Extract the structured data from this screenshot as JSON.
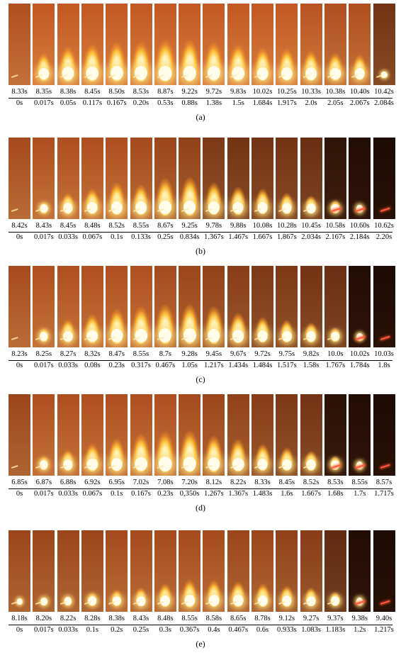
{
  "panels": [
    {
      "caption": "(a)",
      "times_abs": [
        "8.33s",
        "8.35s",
        "8.38s",
        "8.45s",
        "8.50s",
        "8.53s",
        "8.87s",
        "9.22s",
        "9.72s",
        "9.83s",
        "10.02s",
        "10.25s",
        "10.33s",
        "10.38s",
        "10.40s",
        "10.42s"
      ],
      "times_rel": [
        "0s",
        "0.017s",
        "0.05s",
        "0.117s",
        "0.167s",
        "0.20s",
        "0.53s",
        "0.88s",
        "1.38s",
        "1.5s",
        "1.684s",
        "1.917s",
        "2.0s",
        "2.05s",
        "2.067s",
        "2.084s"
      ],
      "flame_level": [
        0.0,
        0.6,
        0.75,
        0.8,
        0.85,
        0.85,
        0.9,
        0.9,
        0.85,
        0.8,
        0.72,
        0.7,
        0.65,
        0.6,
        0.55,
        0.05
      ],
      "darkness": [
        0.2,
        0.1,
        0.1,
        0.1,
        0.1,
        0.1,
        0.1,
        0.1,
        0.1,
        0.1,
        0.1,
        0.1,
        0.15,
        0.2,
        0.2,
        0.5
      ]
    },
    {
      "caption": "(b)",
      "times_abs": [
        "8.42s",
        "8.43s",
        "8.45s",
        "8.48s",
        "8.52s",
        "8.55s",
        "8.67s",
        "9.25s",
        "9.78s",
        "9.88s",
        "10.08s",
        "10.28s",
        "10.45s",
        "10.58s",
        "10.60s",
        "10.62s"
      ],
      "times_rel": [
        "0s",
        "0.017s",
        "0.033s",
        "0.067s",
        "0.1s",
        "0.133s",
        "0.25s",
        "0.834s",
        "1.367s",
        "1.467s",
        "1.667s",
        "1.867s",
        "2.034s",
        "2.167s",
        "2.184s",
        "2.20s"
      ],
      "flame_level": [
        0.0,
        0.25,
        0.45,
        0.55,
        0.7,
        0.65,
        0.8,
        0.82,
        0.7,
        0.6,
        0.55,
        0.45,
        0.38,
        0.28,
        0.15,
        0.0
      ],
      "darkness": [
        0.25,
        0.2,
        0.2,
        0.2,
        0.2,
        0.25,
        0.3,
        0.35,
        0.45,
        0.5,
        0.5,
        0.5,
        0.55,
        0.85,
        0.92,
        0.95
      ]
    },
    {
      "caption": "(c)",
      "times_abs": [
        "8.23s",
        "8.25s",
        "8.27s",
        "8.32s",
        "8.47s",
        "8.55s",
        "8.7s",
        "9.28s",
        "9.45s",
        "9.67s",
        "9.72s",
        "9.75s",
        "9.82s",
        "10.0s",
        "10.02s",
        "10.03s"
      ],
      "times_rel": [
        "0s",
        "0.017s",
        "0.033s",
        "0.08s",
        "0.23s",
        "0.317s",
        "0.467s",
        "1.05s",
        "1.217s",
        "1.434s",
        "1.484s",
        "1.517s",
        "1.58s",
        "1.767s",
        "1.784s",
        "1.8s"
      ],
      "flame_level": [
        0.0,
        0.3,
        0.5,
        0.62,
        0.75,
        0.8,
        0.85,
        0.85,
        0.8,
        0.65,
        0.55,
        0.48,
        0.42,
        0.3,
        0.12,
        0.0
      ],
      "darkness": [
        0.25,
        0.2,
        0.2,
        0.2,
        0.2,
        0.2,
        0.25,
        0.3,
        0.35,
        0.4,
        0.45,
        0.45,
        0.5,
        0.55,
        0.92,
        0.95
      ]
    },
    {
      "caption": "(d)",
      "times_abs": [
        "6.85s",
        "6.87s",
        "6.88s",
        "6.92s",
        "6.95s",
        "7.02s",
        "7.08s",
        "7.20s",
        "8.12s",
        "8.22s",
        "8.33s",
        "8.45s",
        "8.52s",
        "8.53s",
        "8.55s",
        "8.57s"
      ],
      "times_rel": [
        "0s",
        "0.017s",
        "0.033s",
        "0.067s",
        "0.1s",
        "0.167s",
        "0.23s",
        "0,350s",
        "1.267s",
        "1.367s",
        "1.483s",
        "1.6s",
        "1.667s",
        "1.68s",
        "1.7s",
        "1.717s"
      ],
      "flame_level": [
        0.0,
        0.3,
        0.45,
        0.6,
        0.72,
        0.82,
        0.88,
        0.9,
        0.78,
        0.7,
        0.58,
        0.5,
        0.42,
        0.3,
        0.15,
        0.0
      ],
      "darkness": [
        0.3,
        0.2,
        0.2,
        0.2,
        0.2,
        0.2,
        0.2,
        0.25,
        0.3,
        0.35,
        0.4,
        0.45,
        0.5,
        0.88,
        0.92,
        0.95
      ]
    },
    {
      "caption": "(e)",
      "times_abs": [
        "8.18s",
        "8.20s",
        "8.22s",
        "8.28s",
        "8.38s",
        "8.43s",
        "8.48s",
        "8.55s",
        "8.58s",
        "8.65s",
        "8.78s",
        "9.12s",
        "9.27s",
        "9.37s",
        "9.38s",
        "9.40s"
      ],
      "times_rel": [
        "0s",
        "0.017s",
        "0.033s",
        "0.1s",
        "0.2s",
        "0.25s",
        "0.3s",
        "0.367s",
        "0.4s",
        "0.467s",
        "0.6s",
        "0.933s",
        "1.083s",
        "1.183s",
        "1.2s",
        "1.217s"
      ],
      "flame_level": [
        0.05,
        0.15,
        0.2,
        0.3,
        0.35,
        0.4,
        0.5,
        0.6,
        0.58,
        0.55,
        0.5,
        0.45,
        0.4,
        0.3,
        0.15,
        0.0
      ],
      "darkness": [
        0.3,
        0.3,
        0.3,
        0.3,
        0.25,
        0.25,
        0.25,
        0.25,
        0.25,
        0.3,
        0.3,
        0.35,
        0.4,
        0.6,
        0.92,
        0.95
      ]
    }
  ]
}
